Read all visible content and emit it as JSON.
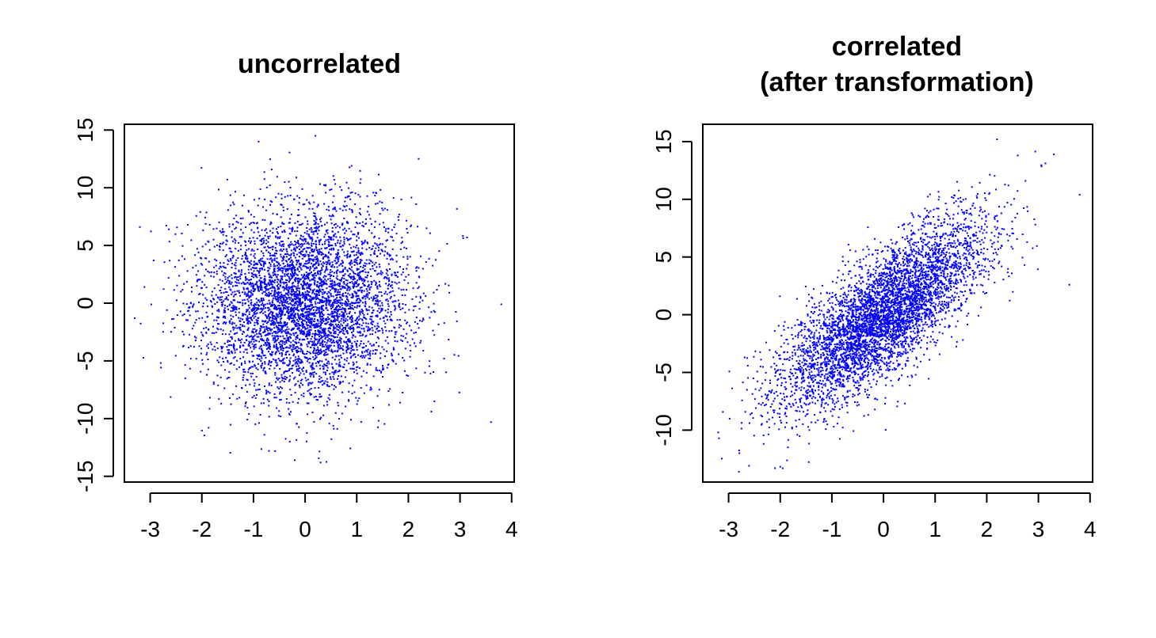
{
  "chart_data": [
    {
      "type": "scatter",
      "title": "uncorrelated",
      "xlabel": "",
      "ylabel": "",
      "xlim": [
        -3.5,
        4.05
      ],
      "ylim": [
        -15.5,
        15.5
      ],
      "x_ticks": [
        -3,
        -2,
        -1,
        0,
        1,
        2,
        3,
        4
      ],
      "x_tick_labels": [
        "-3",
        "-2",
        "-1",
        "0",
        "1",
        "2",
        "3",
        "4"
      ],
      "y_ticks": [
        -15,
        -10,
        -5,
        0,
        5,
        10,
        15
      ],
      "y_tick_labels": [
        "-15",
        "-10",
        "-5",
        "0",
        "5",
        "10",
        "15"
      ],
      "point_color": "#0000ff",
      "n_points": 5000,
      "x_distribution": {
        "mean": 0,
        "sd": 1
      },
      "y_distribution": {
        "mean": 0,
        "sd": 4
      },
      "correlation": 0.0,
      "grid": false,
      "notable_points": [
        {
          "x": 0.3,
          "y": -13.8
        },
        {
          "x": -0.2,
          "y": -13.6
        },
        {
          "x": 0.2,
          "y": 14.5
        },
        {
          "x": -0.9,
          "y": 14.0
        },
        {
          "x": 3.6,
          "y": -10.3
        },
        {
          "x": 3.8,
          "y": -0.1
        },
        {
          "x": 2.2,
          "y": 12.5
        },
        {
          "x": -3.2,
          "y": 6.6
        },
        {
          "x": -3.3,
          "y": -1.3
        },
        {
          "x": -0.7,
          "y": -12.8
        }
      ]
    },
    {
      "type": "scatter",
      "title": "correlated",
      "subtitle": "(after transformation)",
      "xlabel": "",
      "ylabel": "",
      "xlim": [
        -3.5,
        4.05
      ],
      "ylim": [
        -14.5,
        16.5
      ],
      "x_ticks": [
        -3,
        -2,
        -1,
        0,
        1,
        2,
        3,
        4
      ],
      "x_tick_labels": [
        "-3",
        "-2",
        "-1",
        "0",
        "1",
        "2",
        "3",
        "4"
      ],
      "y_ticks": [
        -10,
        -5,
        0,
        5,
        10,
        15
      ],
      "y_tick_labels": [
        "-10",
        "-5",
        "0",
        "5",
        "10",
        "15"
      ],
      "point_color": "#0000ff",
      "n_points": 5000,
      "x_distribution": {
        "mean": 0,
        "sd": 1
      },
      "y_relation": {
        "slope": 3,
        "intercept": 0,
        "residual_sd": 2.6
      },
      "grid": false,
      "notable_points": [
        {
          "x": 2.2,
          "y": 15.2
        },
        {
          "x": 3.3,
          "y": 13.9
        },
        {
          "x": 3.8,
          "y": 10.4
        },
        {
          "x": 3.6,
          "y": 2.6
        },
        {
          "x": -2.8,
          "y": -13.6
        },
        {
          "x": -3.2,
          "y": -10.2
        },
        {
          "x": -2.1,
          "y": -13.3
        },
        {
          "x": 2.6,
          "y": 13.8
        }
      ]
    }
  ]
}
